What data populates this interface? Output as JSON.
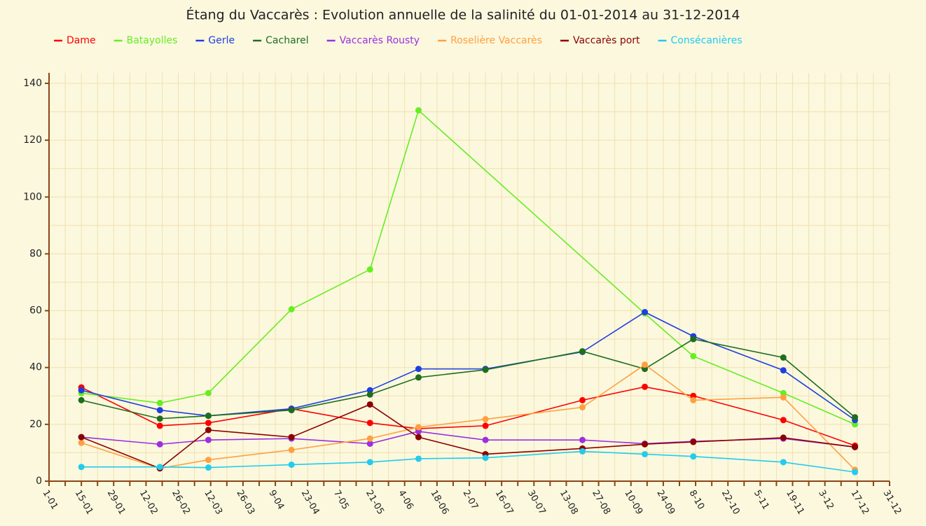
{
  "chart_data": {
    "type": "line",
    "title": "Étang du Vaccarès : Evolution annuelle de la salinité du 01-01-2014 au 31-12-2014",
    "x": [
      "15-01",
      "18-02",
      "11-03",
      "16-04",
      "20-05",
      "10-06",
      "9-07",
      "20-08",
      "16-09",
      "7-10",
      "15-11",
      "16-12"
    ],
    "xlim": [
      "1-01",
      "31-12"
    ],
    "xticks": [
      "1-01",
      "15-01",
      "29-01",
      "12-02",
      "26-02",
      "12-03",
      "26-03",
      "9-04",
      "23-04",
      "7-05",
      "21-05",
      "4-06",
      "18-06",
      "2-07",
      "16-07",
      "30-07",
      "13-08",
      "27-08",
      "10-09",
      "24-09",
      "8-10",
      "22-10",
      "5-11",
      "19-11",
      "3-12",
      "17-12",
      "31-12"
    ],
    "ylim": [
      0,
      140
    ],
    "yticks": [
      0,
      20,
      40,
      60,
      80,
      100,
      120,
      140
    ],
    "grid": true,
    "series": [
      {
        "name": "Dame",
        "color": "#ff0000",
        "values": [
          33,
          19.5,
          20.5,
          25.5,
          20.5,
          18.5,
          19.5,
          28.5,
          33.2,
          30,
          21.5,
          12.5
        ]
      },
      {
        "name": "Batayolles",
        "color": "#66ee22",
        "x": [
          "15-01",
          "18-02",
          "11-03",
          "16-04",
          "20-05",
          "10-06",
          "16-09",
          "7-10",
          "15-11",
          "16-12"
        ],
        "values": [
          31,
          27.5,
          31,
          60.5,
          74.5,
          130.5,
          59,
          44,
          31,
          20
        ]
      },
      {
        "name": "Gerle",
        "color": "#1f3fe0",
        "values": [
          32,
          25,
          23,
          25.5,
          32,
          39.5,
          39.5,
          45.5,
          59.5,
          51,
          39,
          21.5
        ]
      },
      {
        "name": "Cacharel",
        "color": "#1e6e1e",
        "values": [
          28.5,
          22,
          23,
          25,
          30.5,
          36.5,
          39.2,
          45.7,
          39.5,
          50,
          43.5,
          22.5
        ]
      },
      {
        "name": "Vaccarès Rousty",
        "color": "#9b30e0",
        "values": [
          15.5,
          13,
          14.5,
          15,
          13.2,
          17.5,
          14.5,
          14.5,
          13.2,
          14,
          15,
          12
        ]
      },
      {
        "name": "Roselière Vaccarès",
        "color": "#ffa040",
        "values": [
          13.5,
          4.5,
          7.5,
          11,
          15,
          19,
          21.8,
          26,
          41,
          28.5,
          29.5,
          4
        ]
      },
      {
        "name": "Vaccarès port",
        "color": "#8b0000",
        "values": [
          15.5,
          4.5,
          18,
          15.5,
          27,
          15.5,
          9.5,
          11.5,
          13,
          13.8,
          15.3,
          12
        ]
      },
      {
        "name": "Consécanières",
        "color": "#22ccee",
        "values": [
          5,
          5,
          4.8,
          5.8,
          6.7,
          7.9,
          8.2,
          10.5,
          9.5,
          8.7,
          6.7,
          3.2
        ]
      }
    ]
  }
}
